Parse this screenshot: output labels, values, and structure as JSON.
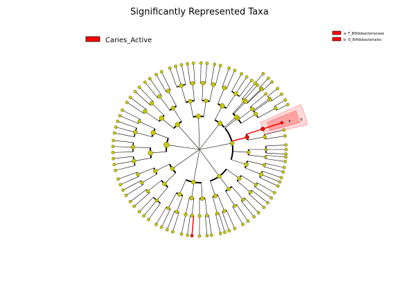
{
  "chart_data": {
    "type": "cladogram",
    "title": "Significantly Represented Taxa",
    "legend_classes": [
      {
        "name": "Caries_Active",
        "color": "#ff0000"
      }
    ],
    "highlighted_clades": [
      {
        "label": "a",
        "name": "a: F_Bifidobacteriaceae",
        "color": "#ff0000"
      },
      {
        "label": "b",
        "name": "b: O_Bifidobacteriales",
        "color": "#ff0000"
      }
    ],
    "node_color": "#c8c800",
    "significant_node_color": "#ff0000"
  }
}
